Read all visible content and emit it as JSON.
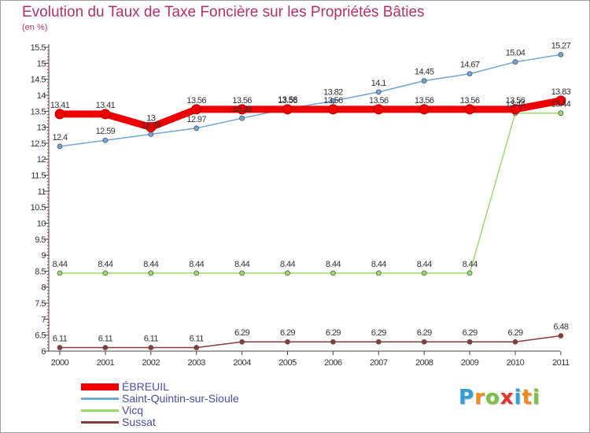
{
  "chart_data": {
    "type": "line",
    "title": "Evolution du Taux de Taxe Foncière sur les Propriétés Bâties",
    "ylabel": "(en %)",
    "xlabel": "",
    "categories": [
      "2000",
      "2001",
      "2002",
      "2003",
      "2004",
      "2005",
      "2006",
      "2007",
      "2008",
      "2009",
      "2010",
      "2011"
    ],
    "ylim": [
      6,
      15.5
    ],
    "yticks": [
      "6",
      "6.5",
      "7",
      "7.5",
      "8",
      "8.5",
      "9",
      "9.5",
      "10",
      "10.5",
      "11",
      "11.5",
      "12",
      "12.5",
      "13",
      "13.5",
      "14",
      "14.5",
      "15",
      "15.5"
    ],
    "grid": false,
    "legend_position": "bottom-left",
    "series": [
      {
        "name": "ÉBREUIL",
        "color": "#ee0000",
        "values": [
          13.41,
          13.41,
          13,
          13.56,
          13.56,
          13.56,
          13.56,
          13.56,
          13.56,
          13.56,
          13.56,
          13.83
        ],
        "labels": [
          "13.41",
          "13.41",
          "13",
          "13.56",
          "13.56",
          "13.56",
          "13.56",
          "13.56",
          "13.56",
          "13.56",
          "13.56",
          "13.83"
        ]
      },
      {
        "name": "Saint-Quintin-sur-Sioule",
        "color": "#6fa6d6",
        "values": [
          12.4,
          12.59,
          12.78,
          12.97,
          13.28,
          13.58,
          13.82,
          14.1,
          14.45,
          14.67,
          15.04,
          15.27
        ],
        "labels": [
          "12.4",
          "12.59",
          "12.78",
          "12.97",
          "13.28",
          "13.58",
          "13.82",
          "14.1",
          "14.45",
          "14.67",
          "15.04",
          "15.27"
        ]
      },
      {
        "name": "Vicq",
        "color": "#99dd66",
        "values": [
          8.44,
          8.44,
          8.44,
          8.44,
          8.44,
          8.44,
          8.44,
          8.44,
          8.44,
          8.44,
          13.44,
          13.44
        ],
        "labels": [
          "8.44",
          "8.44",
          "8.44",
          "8.44",
          "8.44",
          "8.44",
          "8.44",
          "8.44",
          "8.44",
          "8.44",
          "13.44",
          "13.44"
        ]
      },
      {
        "name": "Sussat",
        "color": "#8b3a3a",
        "values": [
          6.11,
          6.11,
          6.11,
          6.11,
          6.29,
          6.29,
          6.29,
          6.29,
          6.29,
          6.29,
          6.29,
          6.48
        ],
        "labels": [
          "6.11",
          "6.11",
          "6.11",
          "6.11",
          "6.29",
          "6.29",
          "6.29",
          "6.29",
          "6.29",
          "6.29",
          "6.29",
          "6.48"
        ]
      }
    ]
  },
  "legend": {
    "items": [
      {
        "label": "ÉBREUIL",
        "color": "#ee0000"
      },
      {
        "label": "Saint-Quintin-sur-Sioule",
        "color": "#6fa6d6"
      },
      {
        "label": "Vicq",
        "color": "#99dd66"
      },
      {
        "label": "Sussat",
        "color": "#8b3a3a"
      }
    ]
  },
  "logo": {
    "text": "Proxiti",
    "letters": [
      "P",
      "r",
      "o",
      "x",
      "i",
      "t",
      "i"
    ],
    "colors": [
      "#2f9fd8",
      "#f28c1e",
      "#7cc242",
      "#e8322e",
      "#2f9fd8",
      "#f28c1e",
      "#7cc242"
    ]
  }
}
